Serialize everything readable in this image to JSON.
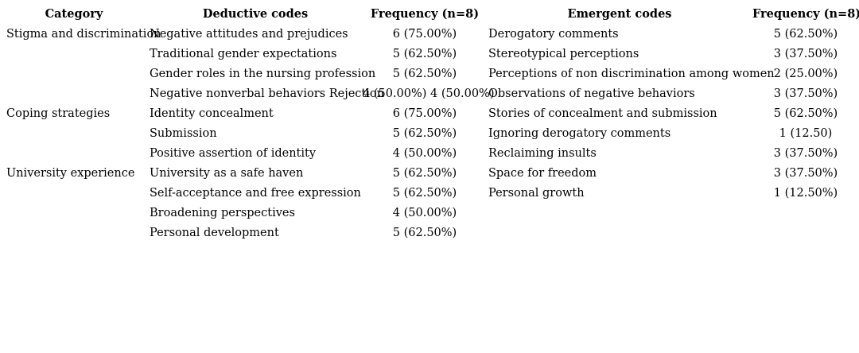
{
  "table": {
    "headers": [
      "Category",
      "Deductive codes",
      "Frequency (n=8)",
      "Emergent codes",
      "Frequency (n=8)"
    ],
    "rows": [
      {
        "category": "Stigma and discrimination",
        "deductive": "Negative attitudes and prejudices",
        "freq1": "6 (75.00%)",
        "emergent": "Derogatory comments",
        "freq2": "5 (62.50%)"
      },
      {
        "category": "",
        "deductive": "Traditional gender expectations",
        "freq1": "5 (62.50%)",
        "emergent": "Stereotypical perceptions",
        "freq2": "3 (37.50%)"
      },
      {
        "category": "",
        "deductive": "Gender roles in the nursing profession",
        "freq1": "5 (62.50%)",
        "emergent": "Perceptions of non discrimination among women",
        "freq2": "2 (25.00%)"
      },
      {
        "category": "",
        "deductive": "Negative nonverbal behaviors Rejection",
        "freq1": "4 (50.00%) 4 (50.00%)",
        "emergent": "Observations of negative behaviors",
        "freq2": "3 (37.50%)"
      },
      {
        "category": "Coping strategies",
        "deductive": "Identity concealment",
        "freq1": "6 (75.00%)",
        "emergent": "Stories of concealment and submission",
        "freq2": "5 (62.50%)"
      },
      {
        "category": "",
        "deductive": "Submission",
        "freq1": "5 (62.50%)",
        "emergent": "Ignoring derogatory comments",
        "freq2": "1 (12.50)"
      },
      {
        "category": "",
        "deductive": "Positive assertion of identity",
        "freq1": "4 (50.00%)",
        "emergent": "Reclaiming insults",
        "freq2": "3 (37.50%)"
      },
      {
        "category": "University experience",
        "deductive": "University as a safe haven",
        "freq1": "5 (62.50%)",
        "emergent": "Space for freedom",
        "freq2": "3 (37.50%)"
      },
      {
        "category": "",
        "deductive": "Self-acceptance and free expression",
        "freq1": "5 (62.50%)",
        "emergent": "Personal growth",
        "freq2": "1 (12.50%)"
      },
      {
        "category": "",
        "deductive": "Broadening perspectives",
        "freq1": "4 (50.00%)",
        "emergent": "",
        "freq2": ""
      },
      {
        "category": "",
        "deductive": "Personal development",
        "freq1": "5 (62.50%)",
        "emergent": "",
        "freq2": ""
      }
    ]
  }
}
